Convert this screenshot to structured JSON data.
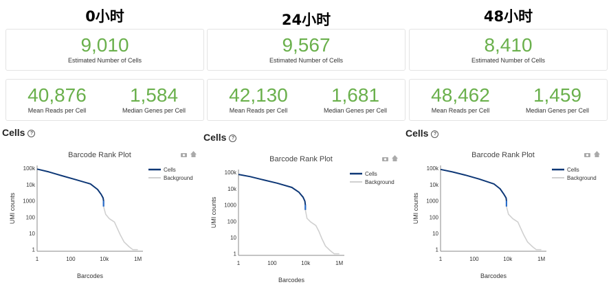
{
  "panels": [
    {
      "timepoint": "0小时",
      "estimated_cells": "9,010",
      "estimated_cells_label": "Estimated Number of Cells",
      "mean_reads": "40,876",
      "mean_reads_label": "Mean Reads per Cell",
      "median_genes": "1,584",
      "median_genes_label": "Median Genes per Cell",
      "section_title": "Cells",
      "help_icon": "?"
    },
    {
      "timepoint": "24小时",
      "estimated_cells": "9,567",
      "estimated_cells_label": "Estimated Number of Cells",
      "mean_reads": "42,130",
      "mean_reads_label": "Mean Reads per Cell",
      "median_genes": "1,681",
      "median_genes_label": "Median Genes per Cell",
      "section_title": "Cells",
      "help_icon": "?"
    },
    {
      "timepoint": "48小时",
      "estimated_cells": "8,410",
      "estimated_cells_label": "Estimated Number of Cells",
      "mean_reads": "48,462",
      "mean_reads_label": "Mean Reads per Cell",
      "median_genes": "1,459",
      "median_genes_label": "Median Genes per Cell",
      "section_title": "Cells",
      "help_icon": "?"
    }
  ],
  "icons": [
    "camera-icon",
    "home-icon",
    "help-icon"
  ],
  "colors": {
    "metric_green": "#6ab04c",
    "cells_line": "#0d3776",
    "cells_tail": "#2a6fcf",
    "background_line": "#d0d0d0"
  },
  "chart_data": [
    {
      "type": "line",
      "title": "Barcode Rank Plot",
      "xlabel": "Barcodes",
      "ylabel": "UMI counts",
      "x_scale": "log",
      "y_scale": "log",
      "xlim": [
        1,
        2000000
      ],
      "ylim": [
        0.8,
        150000
      ],
      "x_ticks": [
        {
          "v": 1,
          "label": "1"
        },
        {
          "v": 100,
          "label": "100"
        },
        {
          "v": 10000,
          "label": "10k"
        },
        {
          "v": 1000000,
          "label": "1M"
        }
      ],
      "y_ticks": [
        {
          "v": 1,
          "label": "1"
        },
        {
          "v": 10,
          "label": "10"
        },
        {
          "v": 100,
          "label": "100"
        },
        {
          "v": 1000,
          "label": "1000"
        },
        {
          "v": 10000,
          "label": "10k"
        },
        {
          "v": 100000,
          "label": "100k"
        }
      ],
      "legend_position": "right",
      "series": [
        {
          "name": "Cells",
          "color": "#0d3776",
          "x": [
            1,
            5,
            30,
            200,
            1500,
            4000,
            6500,
            8500,
            9010,
            9010
          ],
          "y": [
            90000,
            60000,
            35000,
            20000,
            11000,
            5000,
            2500,
            1500,
            1000,
            450
          ]
        },
        {
          "name": "Background",
          "color": "#d0d0d0",
          "x": [
            9010,
            12000,
            20000,
            40000,
            60000,
            90000,
            150000,
            300000,
            500000,
            1000000
          ],
          "y": [
            450,
            150,
            80,
            50,
            20,
            8,
            3,
            1.5,
            1,
            1
          ]
        }
      ]
    },
    {
      "type": "line",
      "title": "Barcode Rank Plot",
      "xlabel": "Barcodes",
      "ylabel": "UMI counts",
      "x_scale": "log",
      "y_scale": "log",
      "xlim": [
        1,
        2000000
      ],
      "ylim": [
        0.8,
        150000
      ],
      "x_ticks": [
        {
          "v": 1,
          "label": "1"
        },
        {
          "v": 100,
          "label": "100"
        },
        {
          "v": 10000,
          "label": "10k"
        },
        {
          "v": 1000000,
          "label": "1M"
        }
      ],
      "y_ticks": [
        {
          "v": 1,
          "label": "1"
        },
        {
          "v": 10,
          "label": "10"
        },
        {
          "v": 100,
          "label": "100"
        },
        {
          "v": 1000,
          "label": "1000"
        },
        {
          "v": 10000,
          "label": "10k"
        },
        {
          "v": 100000,
          "label": "100k"
        }
      ],
      "legend_position": "right",
      "series": [
        {
          "name": "Cells",
          "color": "#0d3776",
          "x": [
            1,
            5,
            30,
            200,
            1500,
            4000,
            7000,
            9000,
            9567,
            9567
          ],
          "y": [
            75000,
            55000,
            35000,
            22000,
            12000,
            6000,
            3000,
            1700,
            1000,
            500
          ]
        },
        {
          "name": "Background",
          "color": "#d0d0d0",
          "x": [
            9567,
            12000,
            20000,
            40000,
            60000,
            90000,
            150000,
            300000,
            500000,
            1000000
          ],
          "y": [
            500,
            150,
            90,
            55,
            25,
            9,
            3,
            1.5,
            1,
            1
          ]
        }
      ]
    },
    {
      "type": "line",
      "title": "Barcode Rank Plot",
      "xlabel": "Barcodes",
      "ylabel": "UMI counts",
      "x_scale": "log",
      "y_scale": "log",
      "xlim": [
        1,
        2000000
      ],
      "ylim": [
        0.8,
        150000
      ],
      "x_ticks": [
        {
          "v": 1,
          "label": "1"
        },
        {
          "v": 100,
          "label": "100"
        },
        {
          "v": 10000,
          "label": "10k"
        },
        {
          "v": 1000000,
          "label": "1M"
        }
      ],
      "y_ticks": [
        {
          "v": 1,
          "label": "1"
        },
        {
          "v": 10,
          "label": "10"
        },
        {
          "v": 100,
          "label": "100"
        },
        {
          "v": 1000,
          "label": "1000"
        },
        {
          "v": 10000,
          "label": "10k"
        },
        {
          "v": 100000,
          "label": "100k"
        }
      ],
      "legend_position": "right",
      "series": [
        {
          "name": "Cells",
          "color": "#0d3776",
          "x": [
            1,
            5,
            30,
            200,
            1500,
            3500,
            6000,
            8000,
            8410,
            8410
          ],
          "y": [
            85000,
            60000,
            38000,
            22000,
            11000,
            5500,
            2500,
            1500,
            1000,
            450
          ]
        },
        {
          "name": "Background",
          "color": "#d0d0d0",
          "x": [
            8410,
            11000,
            20000,
            40000,
            60000,
            90000,
            150000,
            300000,
            500000,
            1000000
          ],
          "y": [
            450,
            150,
            80,
            50,
            20,
            8,
            3,
            1.5,
            1,
            1
          ]
        }
      ]
    }
  ]
}
